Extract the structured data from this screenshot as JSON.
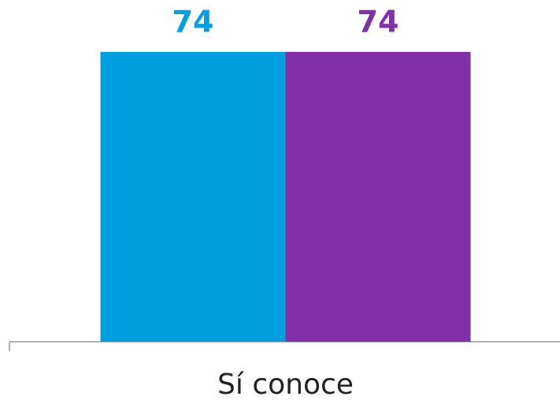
{
  "chart_data": {
    "type": "bar",
    "categories": [
      "Sí conoce"
    ],
    "series": [
      {
        "color": "#009fe0",
        "values": [
          74
        ]
      },
      {
        "color": "#8130a7",
        "values": [
          74
        ]
      }
    ],
    "ylim": [
      0,
      80
    ]
  }
}
